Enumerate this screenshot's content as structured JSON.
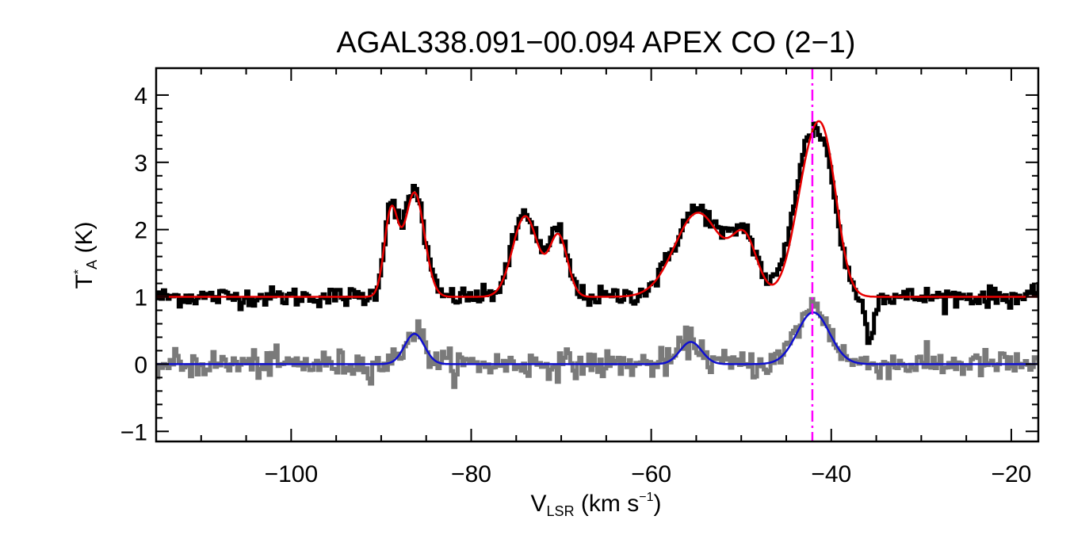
{
  "chart_data": {
    "type": "line",
    "title": "AGAL338.091−00.094  APEX CO (2−1)",
    "xlabel": {
      "main": "V",
      "sub": "LSR",
      "unit_open": " (km s",
      "unit_sup": "−1",
      "unit_close": ")"
    },
    "ylabel": {
      "main": "T",
      "sup": "*",
      "sub": "A",
      "unit": " (K)"
    },
    "xlim": [
      -115,
      -17
    ],
    "ylim": [
      -1.15,
      4.4
    ],
    "xticks": [
      -100,
      -80,
      -60,
      -40,
      -20
    ],
    "xtick_labels": [
      "−100",
      "−80",
      "−60",
      "−40",
      "−20"
    ],
    "yticks": [
      -1,
      0,
      1,
      2,
      3,
      4
    ],
    "ytick_labels": [
      "−1",
      "0",
      "1",
      "2",
      "3",
      "4"
    ],
    "grid": false,
    "legend": "none",
    "series": [
      {
        "role": "observed spectrum (offset +1 K)",
        "color": "#000000",
        "style": "histogram",
        "baseline": 1.0,
        "noise": 0.07,
        "components": [
          {
            "center": -88.9,
            "amp": 1.35,
            "sigma": 0.75
          },
          {
            "center": -86.3,
            "amp": 1.6,
            "sigma": 1.1
          },
          {
            "center": -74.0,
            "amp": 1.25,
            "sigma": 1.4
          },
          {
            "center": -70.3,
            "amp": 0.95,
            "sigma": 1.0
          },
          {
            "center": -54.8,
            "amp": 1.3,
            "sigma": 2.6
          },
          {
            "center": -49.6,
            "amp": 0.85,
            "sigma": 1.4
          },
          {
            "center": -42.6,
            "amp": 2.1,
            "sigma": 1.7
          },
          {
            "center": -40.3,
            "amp": 1.2,
            "sigma": 1.3
          },
          {
            "center": -35.8,
            "amp": -0.6,
            "sigma": 0.45
          }
        ]
      },
      {
        "role": "gaussian fit",
        "color": "#e80000",
        "style": "line",
        "baseline": 1.0,
        "components": [
          {
            "center": -88.9,
            "amp": 1.25,
            "sigma": 0.75
          },
          {
            "center": -86.3,
            "amp": 1.55,
            "sigma": 1.1
          },
          {
            "center": -74.0,
            "amp": 1.2,
            "sigma": 1.4
          },
          {
            "center": -70.3,
            "amp": 0.9,
            "sigma": 1.0
          },
          {
            "center": -54.8,
            "amp": 1.25,
            "sigma": 2.6
          },
          {
            "center": -49.6,
            "amp": 0.8,
            "sigma": 1.4
          },
          {
            "center": -42.1,
            "amp": 2.1,
            "sigma": 1.8
          },
          {
            "center": -40.3,
            "amp": 0.95,
            "sigma": 1.3
          }
        ]
      },
      {
        "role": "second spectrum",
        "color": "#7a7a7a",
        "style": "histogram",
        "baseline": 0.0,
        "noise": 0.1,
        "components": [
          {
            "center": -86.3,
            "amp": 0.5,
            "sigma": 1.1
          },
          {
            "center": -55.6,
            "amp": 0.35,
            "sigma": 1.2
          },
          {
            "center": -42.0,
            "amp": 0.85,
            "sigma": 1.8
          }
        ]
      },
      {
        "role": "second gaussian fit",
        "color": "#1010d0",
        "style": "line",
        "baseline": 0.0,
        "components": [
          {
            "center": -86.3,
            "amp": 0.45,
            "sigma": 1.1
          },
          {
            "center": -55.6,
            "amp": 0.33,
            "sigma": 1.2
          },
          {
            "center": -42.0,
            "amp": 0.77,
            "sigma": 1.8
          }
        ]
      }
    ],
    "vline": {
      "x": -42.1,
      "color": "#ff00ff",
      "style": "dash-dot"
    }
  }
}
